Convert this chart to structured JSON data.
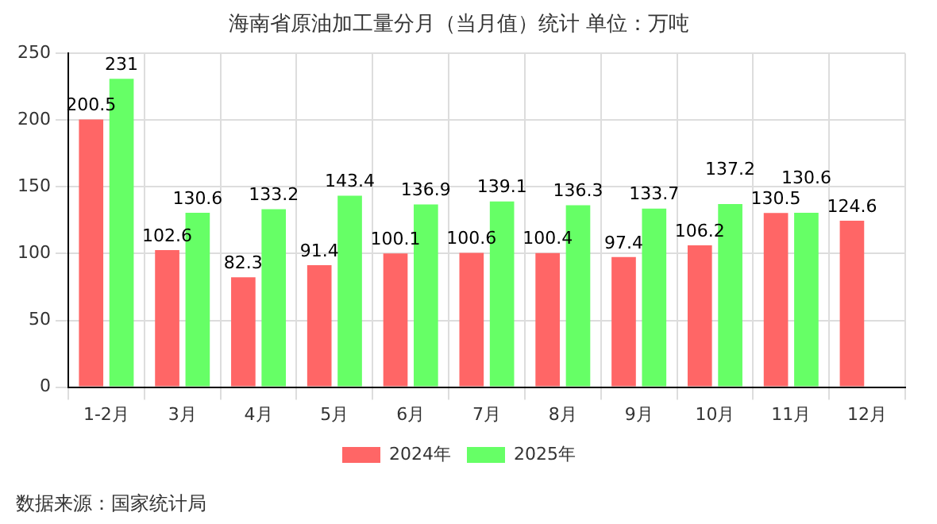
{
  "chart_data": {
    "type": "bar",
    "title": "海南省原油加工量分月（当月值）统计 单位：万吨",
    "categories": [
      "1-2月",
      "3月",
      "4月",
      "5月",
      "6月",
      "7月",
      "8月",
      "9月",
      "10月",
      "11月",
      "12月"
    ],
    "series": [
      {
        "name": "2024年",
        "color": "#ff6666",
        "values": [
          200.5,
          102.6,
          82.3,
          91.4,
          100.1,
          100.6,
          100.4,
          97.4,
          106.2,
          130.5,
          124.6
        ]
      },
      {
        "name": "2025年",
        "color": "#66ff66",
        "values": [
          231,
          130.6,
          133.2,
          143.4,
          136.9,
          139.1,
          136.3,
          133.7,
          137.2,
          130.6,
          null
        ]
      }
    ],
    "ylim": [
      0,
      250
    ],
    "yticks": [
      0,
      50,
      100,
      150,
      200,
      250
    ],
    "grid": true,
    "legend": "bottom",
    "data_labels": true,
    "annotations": [
      "数据来源：国家统计局"
    ]
  }
}
